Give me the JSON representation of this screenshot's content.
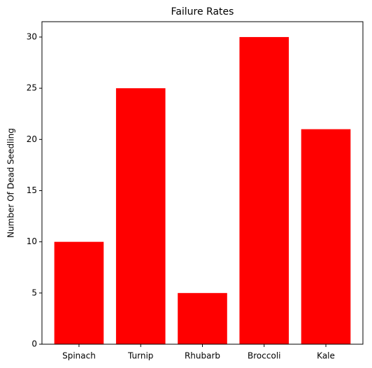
{
  "chart_data": {
    "type": "bar",
    "title": "Failure Rates",
    "y_label": "Number Of Dead Seedling",
    "categories": [
      "Spinach",
      "Turnip",
      "Rhubarb",
      "Broccoli",
      "Kale"
    ],
    "values": [
      10,
      25,
      5,
      30,
      21
    ],
    "color": "#ff0000",
    "ylim": [
      0,
      31.5
    ],
    "yticks": [
      0,
      5,
      10,
      15,
      20,
      25,
      30
    ],
    "grid": false
  }
}
